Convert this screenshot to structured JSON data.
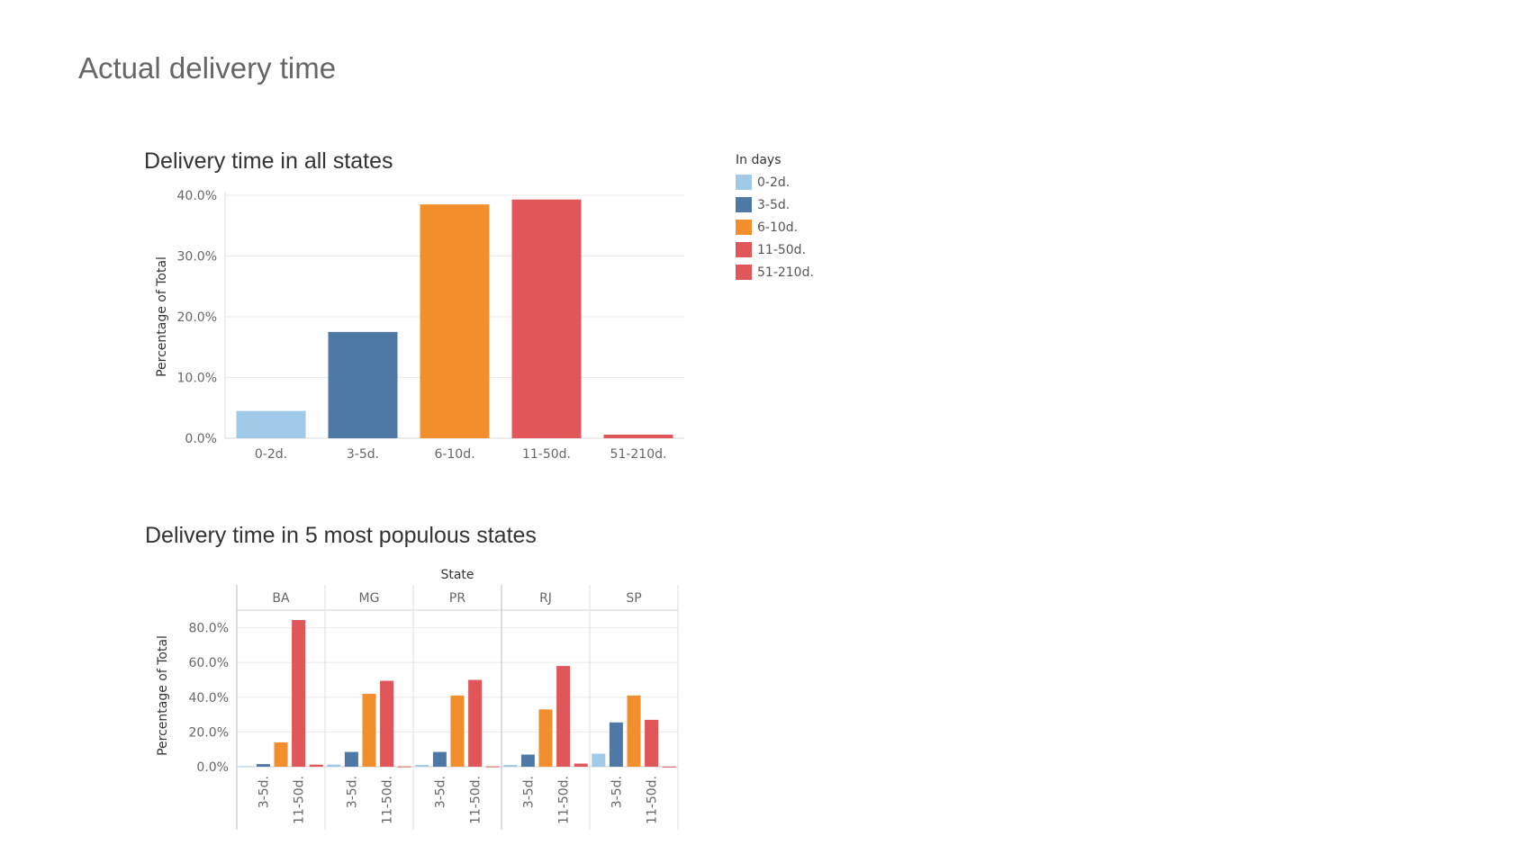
{
  "page": {
    "title": "Actual delivery time"
  },
  "colors": {
    "0-2d.": "#a0cbe8",
    "3-5d.": "#4e79a7",
    "6-10d.": "#f28e2b",
    "11-50d.": "#e15759",
    "51-210d.": "#e15759"
  },
  "legend": {
    "title": "In days",
    "items": [
      "0-2d.",
      "3-5d.",
      "6-10d.",
      "11-50d.",
      "51-210d."
    ]
  },
  "chart_data": [
    {
      "type": "bar",
      "title": "Delivery time in all states",
      "ylabel": "Percentage of Total",
      "xlabel": "",
      "categories": [
        "0-2d.",
        "3-5d.",
        "6-10d.",
        "11-50d.",
        "51-210d."
      ],
      "values": [
        4.5,
        17.5,
        38.5,
        39.3,
        0.6
      ],
      "ylim": [
        0,
        40
      ],
      "yticks": [
        "0.0%",
        "10.0%",
        "20.0%",
        "30.0%",
        "40.0%"
      ],
      "grid": true
    },
    {
      "type": "bar",
      "title": "Delivery time in 5 most populous states",
      "column_header": "State",
      "ylabel": "Percentage of Total",
      "ylim": [
        0,
        85
      ],
      "yticks": [
        "0.0%",
        "20.0%",
        "40.0%",
        "60.0%",
        "80.0%"
      ],
      "categories": [
        "0-2d.",
        "3-5d.",
        "6-10d.",
        "11-50d.",
        "51-210d."
      ],
      "shown_tick_labels": [
        "3-5d.",
        "11-50d."
      ],
      "series": [
        {
          "name": "BA",
          "values": [
            0.3,
            1.5,
            14.0,
            84.5,
            1.2
          ]
        },
        {
          "name": "MG",
          "values": [
            1.2,
            8.5,
            42.0,
            49.5,
            0.2
          ]
        },
        {
          "name": "PR",
          "values": [
            1.0,
            8.5,
            41.0,
            50.0,
            0.2
          ]
        },
        {
          "name": "RJ",
          "values": [
            1.0,
            7.0,
            33.0,
            58.0,
            1.8
          ]
        },
        {
          "name": "SP",
          "values": [
            7.5,
            25.5,
            41.0,
            27.0,
            0.1
          ]
        }
      ],
      "grid": true
    }
  ]
}
